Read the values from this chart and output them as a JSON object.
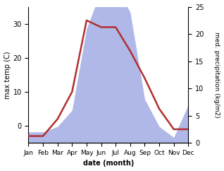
{
  "months": [
    "Jan",
    "Feb",
    "Mar",
    "Apr",
    "May",
    "Jun",
    "Jul",
    "Aug",
    "Sep",
    "Oct",
    "Nov",
    "Dec"
  ],
  "temperature": [
    -3,
    -3,
    2,
    10,
    31,
    29,
    29,
    22,
    14,
    5,
    -1,
    -1
  ],
  "precipitation": [
    2,
    2,
    3,
    6,
    21,
    28,
    29,
    24,
    8,
    3,
    1,
    7
  ],
  "temp_color": "#b03030",
  "precip_color": "#b0b8e8",
  "temp_ylim": [
    -5,
    35
  ],
  "precip_ylim": [
    0,
    25
  ],
  "temp_yticks": [
    0,
    10,
    20,
    30
  ],
  "precip_yticks": [
    0,
    5,
    10,
    15,
    20,
    25
  ],
  "ylabel_left": "max temp (C)",
  "ylabel_right": "med. precipitation (kg/m2)",
  "xlabel": "date (month)",
  "fig_width": 3.18,
  "fig_height": 2.42,
  "dpi": 100,
  "background_color": "#ffffff"
}
